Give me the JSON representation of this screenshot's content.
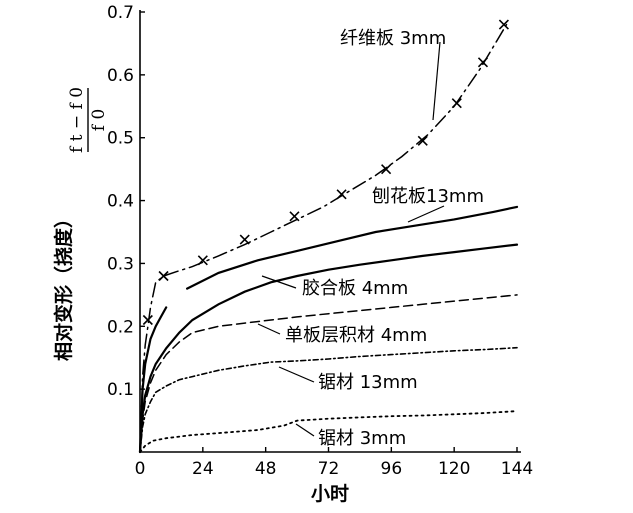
{
  "chart_data": {
    "type": "line",
    "xlabel": "小时",
    "ylabel": "相对变形（挠度）",
    "ylabel_formula": {
      "numerator": "f t − f 0",
      "denominator": "f 0"
    },
    "x_ticks": [
      0,
      24,
      48,
      72,
      96,
      120,
      144
    ],
    "y_ticks": [
      0.1,
      0.2,
      0.3,
      0.4,
      0.5,
      0.6,
      0.7
    ],
    "xlim": [
      0,
      144
    ],
    "ylim": [
      0,
      0.7
    ],
    "grid": false,
    "series": [
      {
        "name": "纤维板 3mm",
        "style": "dash-dot",
        "marker": "x",
        "x": [
          0,
          1,
          2,
          3,
          4,
          6,
          9,
          14,
          20,
          30,
          40,
          50,
          60,
          70,
          80,
          90,
          100,
          110,
          120,
          130,
          140
        ],
        "y": [
          0.0,
          0.12,
          0.17,
          0.2,
          0.23,
          0.27,
          0.28,
          0.287,
          0.295,
          0.312,
          0.33,
          0.35,
          0.37,
          0.39,
          0.415,
          0.44,
          0.47,
          0.505,
          0.55,
          0.61,
          0.68
        ],
        "marker_x": [
          3,
          9,
          24,
          40,
          59,
          77,
          94,
          108,
          121,
          131,
          139
        ],
        "marker_y": [
          0.21,
          0.28,
          0.305,
          0.338,
          0.375,
          0.41,
          0.45,
          0.495,
          0.555,
          0.62,
          0.68
        ]
      },
      {
        "name": "刨花板13mm",
        "style": "solid",
        "x": [
          0,
          1,
          2,
          4,
          6,
          8,
          10
        ],
        "y": [
          0.0,
          0.1,
          0.14,
          0.18,
          0.2,
          0.215,
          0.23
        ],
        "x2": [
          18,
          30,
          45,
          60,
          75,
          90,
          105,
          120,
          135,
          144
        ],
        "y2": [
          0.26,
          0.285,
          0.305,
          0.32,
          0.335,
          0.35,
          0.36,
          0.37,
          0.382,
          0.39
        ]
      },
      {
        "name": "胶合板 4mm",
        "style": "solid",
        "x": [
          0,
          1,
          2,
          4,
          6,
          10,
          15,
          20,
          30,
          40,
          50,
          60,
          72,
          84,
          96,
          108,
          120,
          132,
          144
        ],
        "y": [
          0.0,
          0.06,
          0.09,
          0.12,
          0.14,
          0.165,
          0.19,
          0.21,
          0.235,
          0.255,
          0.27,
          0.28,
          0.29,
          0.298,
          0.305,
          0.312,
          0.318,
          0.324,
          0.33
        ]
      },
      {
        "name": "单板层积材 4mm",
        "style": "dashed",
        "x": [
          0,
          1,
          2,
          4,
          6,
          10,
          15,
          20,
          30,
          40,
          50,
          60,
          72,
          84,
          96,
          108,
          120,
          132,
          144
        ],
        "y": [
          0.0,
          0.05,
          0.08,
          0.11,
          0.13,
          0.155,
          0.175,
          0.19,
          0.2,
          0.205,
          0.21,
          0.215,
          0.22,
          0.225,
          0.23,
          0.235,
          0.24,
          0.245,
          0.25
        ]
      },
      {
        "name": "锯材 13mm",
        "style": "dash-dot-fine",
        "x": [
          0,
          1,
          2,
          4,
          6,
          10,
          15,
          20,
          30,
          40,
          50,
          60,
          72,
          84,
          96,
          108,
          120,
          132,
          144
        ],
        "y": [
          0.0,
          0.04,
          0.06,
          0.08,
          0.095,
          0.105,
          0.115,
          0.12,
          0.13,
          0.137,
          0.143,
          0.145,
          0.148,
          0.152,
          0.155,
          0.158,
          0.161,
          0.163,
          0.166
        ]
      },
      {
        "name": "锯材 3mm",
        "style": "dotted",
        "x": [
          0,
          2,
          5,
          10,
          20,
          30,
          45,
          55,
          60,
          72,
          84,
          96,
          108,
          120,
          132,
          144
        ],
        "y": [
          0.0,
          0.01,
          0.018,
          0.022,
          0.027,
          0.03,
          0.035,
          0.042,
          0.05,
          0.053,
          0.055,
          0.057,
          0.058,
          0.06,
          0.062,
          0.065
        ]
      }
    ]
  }
}
